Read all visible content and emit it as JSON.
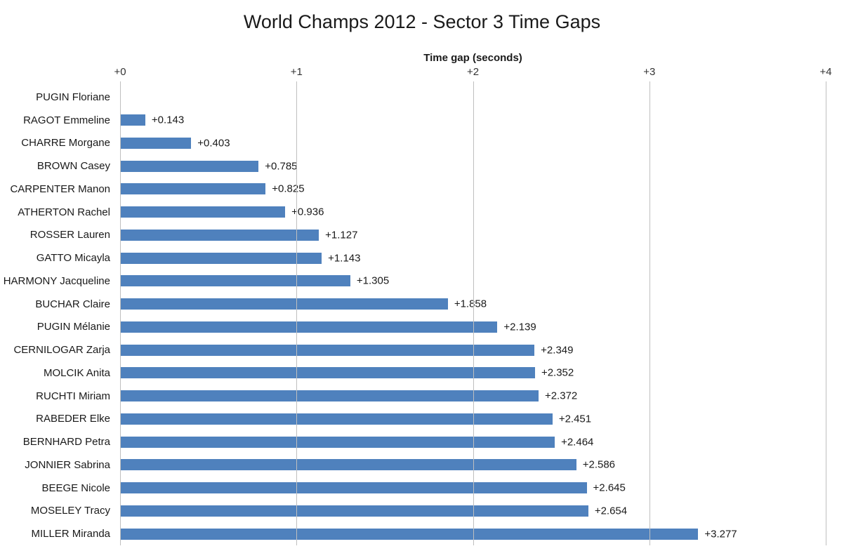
{
  "chart_data": {
    "type": "bar",
    "orientation": "horizontal",
    "title": "World Champs 2012 - Sector 3 Time Gaps",
    "xlabel": "Time gap (seconds)",
    "ylabel": "",
    "categories": [
      "PUGIN Floriane",
      "RAGOT Emmeline",
      "CHARRE Morgane",
      "BROWN Casey",
      "CARPENTER Manon",
      "ATHERTON Rachel",
      "ROSSER Lauren",
      "GATTO Micayla",
      "HARMONY Jacqueline",
      "BUCHAR Claire",
      "PUGIN Mélanie",
      "CERNILOGAR Zarja",
      "MOLCIK Anita",
      "RUCHTI Miriam",
      "RABEDER Elke",
      "BERNHARD Petra",
      "JONNIER Sabrina",
      "BEEGE Nicole",
      "MOSELEY Tracy",
      "MILLER Miranda"
    ],
    "values": [
      0,
      0.143,
      0.403,
      0.785,
      0.825,
      0.936,
      1.127,
      1.143,
      1.305,
      1.858,
      2.139,
      2.349,
      2.352,
      2.372,
      2.451,
      2.464,
      2.586,
      2.645,
      2.654,
      3.277
    ],
    "value_labels": [
      "",
      "+0.143",
      "+0.403",
      "+0.785",
      "+0.825",
      "+0.936",
      "+1.127",
      "+1.143",
      "+1.305",
      "+1.858",
      "+2.139",
      "+2.349",
      "+2.352",
      "+2.372",
      "+2.451",
      "+2.464",
      "+2.586",
      "+2.645",
      "+2.654",
      "+3.277"
    ],
    "xlim": [
      0,
      4
    ],
    "x_ticks": [
      "+0",
      "+1",
      "+2",
      "+3",
      "+4"
    ],
    "grid": true,
    "legend": "none",
    "bar_color": "#4f81bd",
    "gridline_color": "#bfbfbf"
  }
}
